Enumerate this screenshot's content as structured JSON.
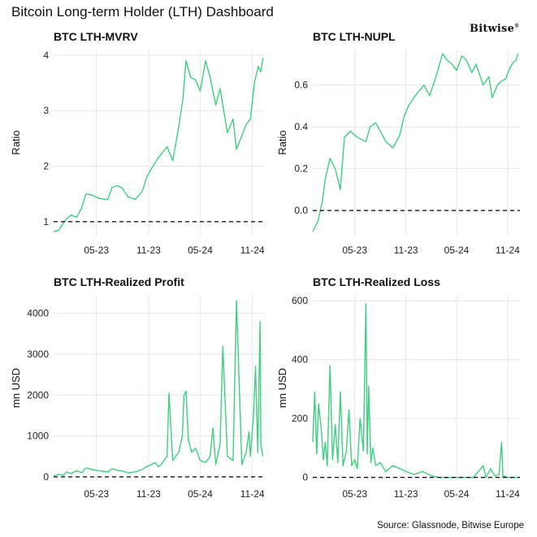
{
  "header": {
    "title": "Bitcoin Long-term Holder (LTH) Dashboard",
    "brand": "Bitwise",
    "source": "Source: Glassnode, Bitwise Europe"
  },
  "colors": {
    "series": "#3ecf7f",
    "reference_line": "#000000",
    "grid": "#e6e6e6"
  },
  "chart_data": [
    {
      "id": "mvrv",
      "type": "line",
      "title": "BTC LTH-MVRV",
      "xlabel": "",
      "ylabel": "Ratio",
      "xticks": [
        "05-23",
        "11-23",
        "05-24",
        "11-24"
      ],
      "yticks": [
        1,
        2,
        3,
        4
      ],
      "xlim": [
        "2022-12-01",
        "2024-12-15"
      ],
      "ylim": [
        0.75,
        4.1
      ],
      "grid": true,
      "reference_line": 1,
      "series": [
        {
          "x": [
            "2022-12-01",
            "2022-12-20",
            "2023-01-05",
            "2023-01-15",
            "2023-02-01",
            "2023-02-20",
            "2023-03-10",
            "2023-03-25",
            "2023-04-15",
            "2023-05-10",
            "2023-06-10",
            "2023-06-25",
            "2023-07-15",
            "2023-08-01",
            "2023-08-20",
            "2023-09-15",
            "2023-10-10",
            "2023-10-25",
            "2023-11-10",
            "2023-12-05",
            "2024-01-05",
            "2024-01-25",
            "2024-02-15",
            "2024-03-01",
            "2024-03-12",
            "2024-03-28",
            "2024-04-15",
            "2024-05-01",
            "2024-05-20",
            "2024-06-05",
            "2024-06-25",
            "2024-07-10",
            "2024-08-05",
            "2024-08-25",
            "2024-09-06",
            "2024-09-25",
            "2024-10-10",
            "2024-10-25",
            "2024-11-08",
            "2024-11-22",
            "2024-12-01",
            "2024-12-08"
          ],
          "y": [
            0.82,
            0.85,
            0.98,
            1.05,
            1.12,
            1.08,
            1.25,
            1.5,
            1.48,
            1.42,
            1.4,
            1.62,
            1.65,
            1.6,
            1.45,
            1.4,
            1.55,
            1.8,
            1.95,
            2.15,
            2.35,
            2.1,
            2.7,
            3.2,
            3.9,
            3.6,
            3.55,
            3.35,
            3.9,
            3.6,
            3.1,
            3.4,
            2.6,
            2.85,
            2.3,
            2.55,
            2.75,
            2.85,
            3.5,
            3.8,
            3.7,
            3.95
          ]
        }
      ]
    },
    {
      "id": "nupl",
      "type": "line",
      "title": "BTC LTH-NUPL",
      "xlabel": "",
      "ylabel": "Ratio",
      "xticks": [
        "05-23",
        "11-23",
        "05-24",
        "11-24"
      ],
      "yticks": [
        0.0,
        0.2,
        0.4,
        0.6
      ],
      "xlim": [
        "2022-12-01",
        "2024-12-15"
      ],
      "ylim": [
        -0.12,
        0.77
      ],
      "grid": true,
      "reference_line": 0,
      "series": [
        {
          "x": [
            "2022-12-01",
            "2022-12-20",
            "2023-01-05",
            "2023-01-15",
            "2023-02-01",
            "2023-02-20",
            "2023-03-10",
            "2023-03-25",
            "2023-04-15",
            "2023-05-10",
            "2023-06-10",
            "2023-06-25",
            "2023-07-15",
            "2023-08-01",
            "2023-08-20",
            "2023-09-15",
            "2023-10-10",
            "2023-10-25",
            "2023-11-10",
            "2023-12-05",
            "2024-01-05",
            "2024-01-25",
            "2024-02-15",
            "2024-03-01",
            "2024-03-12",
            "2024-03-28",
            "2024-04-15",
            "2024-05-01",
            "2024-05-20",
            "2024-06-05",
            "2024-06-25",
            "2024-07-10",
            "2024-08-05",
            "2024-08-25",
            "2024-09-06",
            "2024-09-25",
            "2024-10-10",
            "2024-10-25",
            "2024-11-08",
            "2024-11-22",
            "2024-12-01",
            "2024-12-08"
          ],
          "y": [
            -0.1,
            -0.05,
            0.05,
            0.15,
            0.25,
            0.2,
            0.1,
            0.35,
            0.38,
            0.35,
            0.33,
            0.4,
            0.42,
            0.38,
            0.33,
            0.3,
            0.36,
            0.45,
            0.5,
            0.55,
            0.6,
            0.55,
            0.63,
            0.7,
            0.75,
            0.72,
            0.7,
            0.67,
            0.74,
            0.72,
            0.66,
            0.7,
            0.6,
            0.64,
            0.54,
            0.6,
            0.62,
            0.63,
            0.68,
            0.71,
            0.72,
            0.75
          ]
        }
      ]
    },
    {
      "id": "profit",
      "type": "line",
      "title": "BTC LTH-Realized Profit",
      "xlabel": "",
      "ylabel": "mn USD",
      "xticks": [
        "05-23",
        "11-23",
        "05-24",
        "11-24"
      ],
      "yticks": [
        0,
        1000,
        2000,
        3000,
        4000
      ],
      "xlim": [
        "2022-12-01",
        "2024-12-15"
      ],
      "ylim": [
        -100,
        4450
      ],
      "grid": true,
      "reference_line": 0,
      "series": [
        {
          "x": [
            "2022-12-01",
            "2022-12-20",
            "2023-01-05",
            "2023-01-15",
            "2023-02-01",
            "2023-02-20",
            "2023-03-10",
            "2023-03-25",
            "2023-04-15",
            "2023-05-10",
            "2023-06-10",
            "2023-06-25",
            "2023-07-15",
            "2023-08-01",
            "2023-08-20",
            "2023-09-15",
            "2023-10-10",
            "2023-10-25",
            "2023-11-10",
            "2023-11-25",
            "2023-12-05",
            "2023-12-15",
            "2024-01-05",
            "2024-01-12",
            "2024-01-25",
            "2024-02-15",
            "2024-02-28",
            "2024-03-05",
            "2024-03-12",
            "2024-03-20",
            "2024-04-01",
            "2024-04-15",
            "2024-05-01",
            "2024-05-20",
            "2024-06-05",
            "2024-06-15",
            "2024-06-25",
            "2024-07-10",
            "2024-07-20",
            "2024-08-05",
            "2024-08-25",
            "2024-09-06",
            "2024-09-25",
            "2024-10-10",
            "2024-10-20",
            "2024-10-25",
            "2024-11-05",
            "2024-11-12",
            "2024-11-20",
            "2024-11-28",
            "2024-12-01",
            "2024-12-08"
          ],
          "y": [
            30,
            60,
            40,
            120,
            80,
            150,
            100,
            220,
            180,
            150,
            120,
            200,
            160,
            140,
            100,
            120,
            180,
            250,
            300,
            350,
            250,
            300,
            500,
            2050,
            400,
            600,
            1000,
            2000,
            2100,
            900,
            600,
            700,
            400,
            350,
            500,
            1200,
            300,
            800,
            3200,
            500,
            400,
            4300,
            300,
            600,
            1100,
            500,
            1500,
            2700,
            600,
            3800,
            800,
            500
          ]
        }
      ]
    },
    {
      "id": "loss",
      "type": "line",
      "title": "BTC LTH-Realized Loss",
      "xlabel": "",
      "ylabel": "mn USD",
      "xticks": [
        "05-23",
        "11-23",
        "05-24",
        "11-24"
      ],
      "yticks": [
        0,
        200,
        400,
        600
      ],
      "xlim": [
        "2022-12-01",
        "2024-12-15"
      ],
      "ylim": [
        -12,
        620
      ],
      "grid": true,
      "reference_line": 0,
      "series": [
        {
          "x": [
            "2022-12-01",
            "2022-12-08",
            "2022-12-15",
            "2022-12-22",
            "2023-01-01",
            "2023-01-08",
            "2023-01-15",
            "2023-01-22",
            "2023-02-01",
            "2023-02-10",
            "2023-02-20",
            "2023-03-01",
            "2023-03-10",
            "2023-03-20",
            "2023-04-01",
            "2023-04-10",
            "2023-04-20",
            "2023-05-01",
            "2023-05-10",
            "2023-05-20",
            "2023-06-01",
            "2023-06-10",
            "2023-06-15",
            "2023-06-20",
            "2023-06-28",
            "2023-07-05",
            "2023-07-15",
            "2023-08-01",
            "2023-08-20",
            "2023-09-15",
            "2023-10-10",
            "2023-11-01",
            "2023-12-01",
            "2024-01-01",
            "2024-02-01",
            "2024-03-01",
            "2024-04-01",
            "2024-05-01",
            "2024-06-01",
            "2024-07-01",
            "2024-08-05",
            "2024-08-15",
            "2024-09-01",
            "2024-09-15",
            "2024-10-01",
            "2024-10-10",
            "2024-10-15",
            "2024-10-20",
            "2024-11-01",
            "2024-12-01",
            "2024-12-08"
          ],
          "y": [
            120,
            290,
            80,
            250,
            160,
            60,
            120,
            40,
            380,
            60,
            180,
            50,
            290,
            40,
            90,
            230,
            40,
            60,
            30,
            200,
            90,
            590,
            80,
            310,
            50,
            100,
            40,
            50,
            20,
            40,
            30,
            20,
            10,
            20,
            5,
            0,
            0,
            0,
            0,
            0,
            40,
            0,
            30,
            5,
            10,
            120,
            0,
            5,
            0,
            0,
            0
          ]
        }
      ]
    }
  ]
}
